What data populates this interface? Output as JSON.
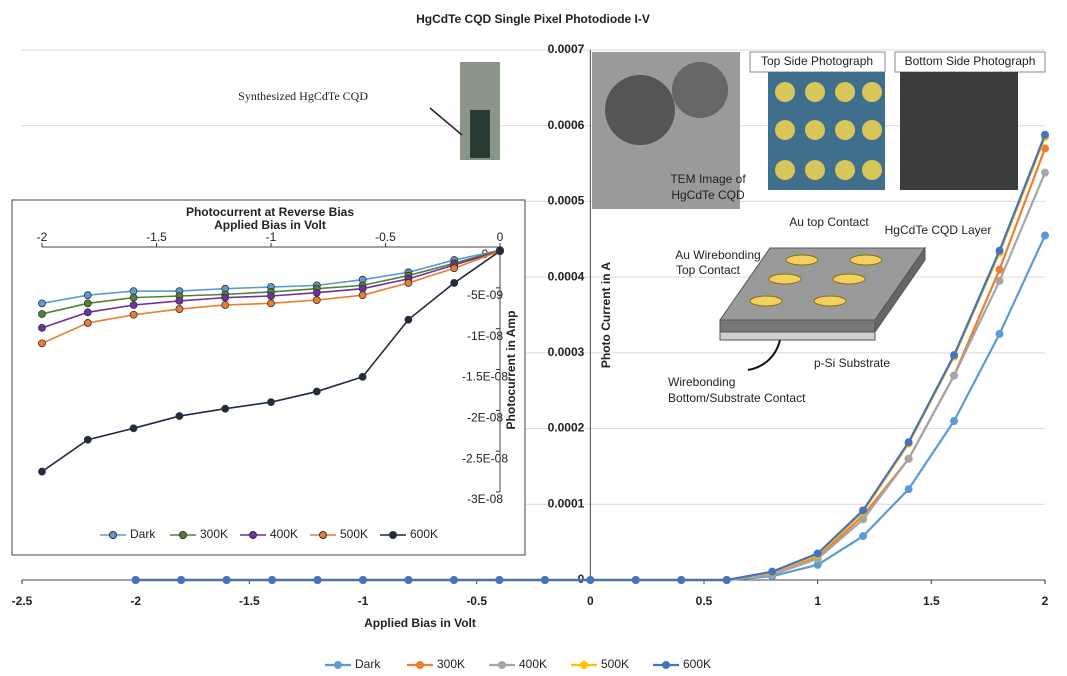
{
  "chart_data": [
    {
      "type": "line",
      "title": "HgCdTe CQD Single Pixel Photodiode I-V",
      "x_label": "Applied Bias in Volt",
      "y_label": "Photo Current in A",
      "x": [
        -2,
        -1.8,
        -1.6,
        -1.4,
        -1.2,
        -1,
        -0.8,
        -0.6,
        -0.4,
        -0.2,
        0,
        0.2,
        0.4,
        0.6,
        0.8,
        1,
        1.2,
        1.4,
        1.6,
        1.8,
        2
      ],
      "series": [
        {
          "name": "Dark",
          "color": "#5b9bd5",
          "values": [
            0,
            0,
            0,
            0,
            0,
            0,
            0,
            0,
            0,
            0,
            0,
            0,
            0,
            0,
            5e-06,
            2e-05,
            5.8e-05,
            0.00012,
            0.00021,
            0.000325,
            0.000455
          ]
        },
        {
          "name": "300K",
          "color": "#ed7d31",
          "values": [
            0,
            0,
            0,
            0,
            0,
            0,
            0,
            0,
            0,
            0,
            0,
            0,
            0,
            0,
            8e-06,
            3e-05,
            8.5e-05,
            0.00016,
            0.00027,
            0.00041,
            0.00057
          ]
        },
        {
          "name": "400K",
          "color": "#a5a5a5",
          "values": [
            0,
            0,
            0,
            0,
            0,
            0,
            0,
            0,
            0,
            0,
            0,
            0,
            0,
            0,
            7e-06,
            2.8e-05,
            8e-05,
            0.00016,
            0.00027,
            0.000395,
            0.000538
          ]
        },
        {
          "name": "500K",
          "color": "#ffc000",
          "values": [
            0,
            0,
            0,
            0,
            0,
            0,
            0,
            0,
            0,
            0,
            0,
            0,
            0,
            0,
            1e-05,
            3.3e-05,
            9e-05,
            0.00018,
            0.000295,
            0.000432,
            0.000585
          ]
        },
        {
          "name": "600K",
          "color": "#4472c4",
          "values": [
            0,
            0,
            0,
            0,
            0,
            0,
            0,
            0,
            0,
            0,
            0,
            0,
            0,
            0,
            1.1e-05,
            3.5e-05,
            9.2e-05,
            0.000182,
            0.000297,
            0.000435,
            0.000588
          ]
        }
      ],
      "xlim": [
        -2.5,
        2
      ],
      "xticks": [
        -2.5,
        -2,
        -1.5,
        -1,
        -0.5,
        0,
        0.5,
        1,
        1.5,
        2
      ],
      "ylim": [
        0,
        0.0007
      ],
      "yticks": [
        0,
        0.0001,
        0.0002,
        0.0003,
        0.0004,
        0.0005,
        0.0006,
        0.0007
      ],
      "grid": true,
      "legend": "bottom",
      "annotations": [
        "Synthesized HgCdTe CQD",
        "TEM Image of",
        "HgCdTe CQD",
        "Top Side Photograph",
        "Bottom Side Photograph",
        "Au top Contact",
        "HgCdTe CQD Layer",
        "Au Wirebonding",
        "Top Contact",
        "p-Si Substrate",
        "Wirebonding",
        "Bottom/Substrate Contact"
      ]
    },
    {
      "type": "line",
      "title": "Photocurrent at Reverse Bias",
      "x_label": "Applied Bias in Volt",
      "y_label": "Photocurrent in Amp",
      "x": [
        -2,
        -1.8,
        -1.6,
        -1.4,
        -1.2,
        -1,
        -0.8,
        -0.6,
        -0.4,
        -0.2,
        0
      ],
      "series": [
        {
          "name": "Dark",
          "color": "#5b9bd5",
          "values": [
            -6.9e-09,
            -5.9e-09,
            -5.4e-09,
            -5.4e-09,
            -5.1e-09,
            -4.9e-09,
            -4.7e-09,
            -4e-09,
            -3.1e-09,
            -1.6e-09,
            -4e-10
          ]
        },
        {
          "name": "300K",
          "color": "#548235",
          "values": [
            -8.2e-09,
            -6.9e-09,
            -6.2e-09,
            -6e-09,
            -5.8e-09,
            -5.5e-09,
            -5.1e-09,
            -4.7e-09,
            -3.5e-09,
            -2e-09,
            -4e-10
          ]
        },
        {
          "name": "400K",
          "color": "#7030a0",
          "values": [
            -9.9e-09,
            -8e-09,
            -7.1e-09,
            -6.6e-09,
            -6.2e-09,
            -6e-09,
            -5.6e-09,
            -5.1e-09,
            -3.9e-09,
            -2.2e-09,
            -5e-10
          ]
        },
        {
          "name": "500K",
          "color": "#ed7d31",
          "values": [
            -1.18e-08,
            -9.3e-09,
            -8.3e-09,
            -7.6e-09,
            -7.1e-09,
            -6.9e-09,
            -6.5e-09,
            -5.9e-09,
            -4.4e-09,
            -2.6e-09,
            -5e-10
          ]
        },
        {
          "name": "600K",
          "color": "#1f2a44",
          "values": [
            -2.75e-08,
            -2.36e-08,
            -2.22e-08,
            -2.07e-08,
            -1.98e-08,
            -1.9e-08,
            -1.77e-08,
            -1.59e-08,
            -8.9e-09,
            -4.4e-09,
            -5e-10
          ]
        }
      ],
      "xlim": [
        -2,
        0
      ],
      "xticks": [
        -2,
        -1.5,
        -1,
        -0.5,
        0
      ],
      "ylim": [
        -3e-08,
        0
      ],
      "yticks": [
        {
          "value": -3e-08,
          "label": "-3E-08"
        },
        {
          "value": -2.5e-08,
          "label": "-2.5E-08"
        },
        {
          "value": -2e-08,
          "label": "-2E-08"
        },
        {
          "value": -1.5e-08,
          "label": "-1.5E-08"
        },
        {
          "value": -1e-08,
          "label": "-1E-08"
        },
        {
          "value": -5e-09,
          "label": "-5E-09"
        },
        0
      ],
      "grid": false,
      "legend": "bottom"
    }
  ]
}
